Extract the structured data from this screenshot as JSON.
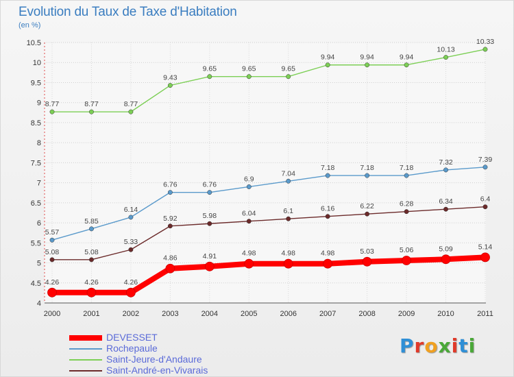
{
  "header": {
    "title": "Evolution du Taux de Taxe d'Habitation",
    "subtitle": "(en %)"
  },
  "logo": {
    "text": "Proxiti",
    "letter_colors": [
      "#2f8fd6",
      "#e03a2a",
      "#f0a020",
      "#4aa838",
      "#e03a2a",
      "#2f8fd6",
      "#4aa838"
    ]
  },
  "chart_data": {
    "type": "line",
    "title": "Evolution du Taux de Taxe d'Habitation",
    "subtitle": "(en %)",
    "x": [
      "2000",
      "2001",
      "2002",
      "2003",
      "2004",
      "2005",
      "2006",
      "2007",
      "2008",
      "2009",
      "2010",
      "2011"
    ],
    "ylim": [
      4,
      10.5
    ],
    "y_ticks": [
      "4",
      "4.5",
      "5",
      "5.5",
      "6",
      "6.5",
      "7",
      "7.5",
      "8",
      "8.5",
      "9",
      "9.5",
      "10",
      "10.5"
    ],
    "grid": true,
    "legend_position": "bottom-left",
    "series": [
      {
        "name": "Saint-Jeure-d'Andaure",
        "color": "#7ccf55",
        "marker_color": "#7ccf55",
        "line_width": "thin",
        "values": [
          8.77,
          8.77,
          8.77,
          9.43,
          9.65,
          9.65,
          9.65,
          9.94,
          9.94,
          9.94,
          10.13,
          10.33
        ],
        "labels": [
          "8.77",
          "8.77",
          "8.77",
          "9.43",
          "9.65",
          "9.65",
          "9.65",
          "9.94",
          "9.94",
          "9.94",
          "10.13",
          "10.33"
        ]
      },
      {
        "name": "Rochepaule",
        "color": "#5a9acb",
        "marker_color": "#5a9acb",
        "line_width": "thin",
        "values": [
          5.57,
          5.85,
          6.14,
          6.76,
          6.76,
          6.9,
          7.04,
          7.18,
          7.18,
          7.18,
          7.32,
          7.39
        ],
        "labels": [
          "5.57",
          "5.85",
          "6.14",
          "6.76",
          "6.76",
          "6.9",
          "7.04",
          "7.18",
          "7.18",
          "7.18",
          "7.32",
          "7.39"
        ]
      },
      {
        "name": "Saint-André-en-Vivarais",
        "color": "#6b2a2a",
        "marker_color": "#6b2a2a",
        "line_width": "thin",
        "values": [
          5.08,
          5.08,
          5.33,
          5.92,
          5.98,
          6.04,
          6.1,
          6.16,
          6.22,
          6.28,
          6.34,
          6.4
        ],
        "labels": [
          "5.08",
          "5.08",
          "5.33",
          "5.92",
          "5.98",
          "6.04",
          "6.1",
          "6.16",
          "6.22",
          "6.28",
          "6.34",
          "6.4"
        ]
      },
      {
        "name": "DEVESSET",
        "color": "#ff0000",
        "marker_color": "#ff0000",
        "line_width": "thick",
        "values": [
          4.26,
          4.26,
          4.26,
          4.86,
          4.91,
          4.98,
          4.98,
          4.98,
          5.03,
          5.06,
          5.09,
          5.14
        ],
        "labels": [
          "4.26",
          "4.26",
          "4.26",
          "4.86",
          "4.91",
          "4.98",
          "4.98",
          "4.98",
          "5.03",
          "5.06",
          "5.09",
          "5.14"
        ]
      }
    ],
    "legend_order": [
      "DEVESSET",
      "Rochepaule",
      "Saint-Jeure-d'Andaure",
      "Saint-André-en-Vivarais"
    ]
  }
}
